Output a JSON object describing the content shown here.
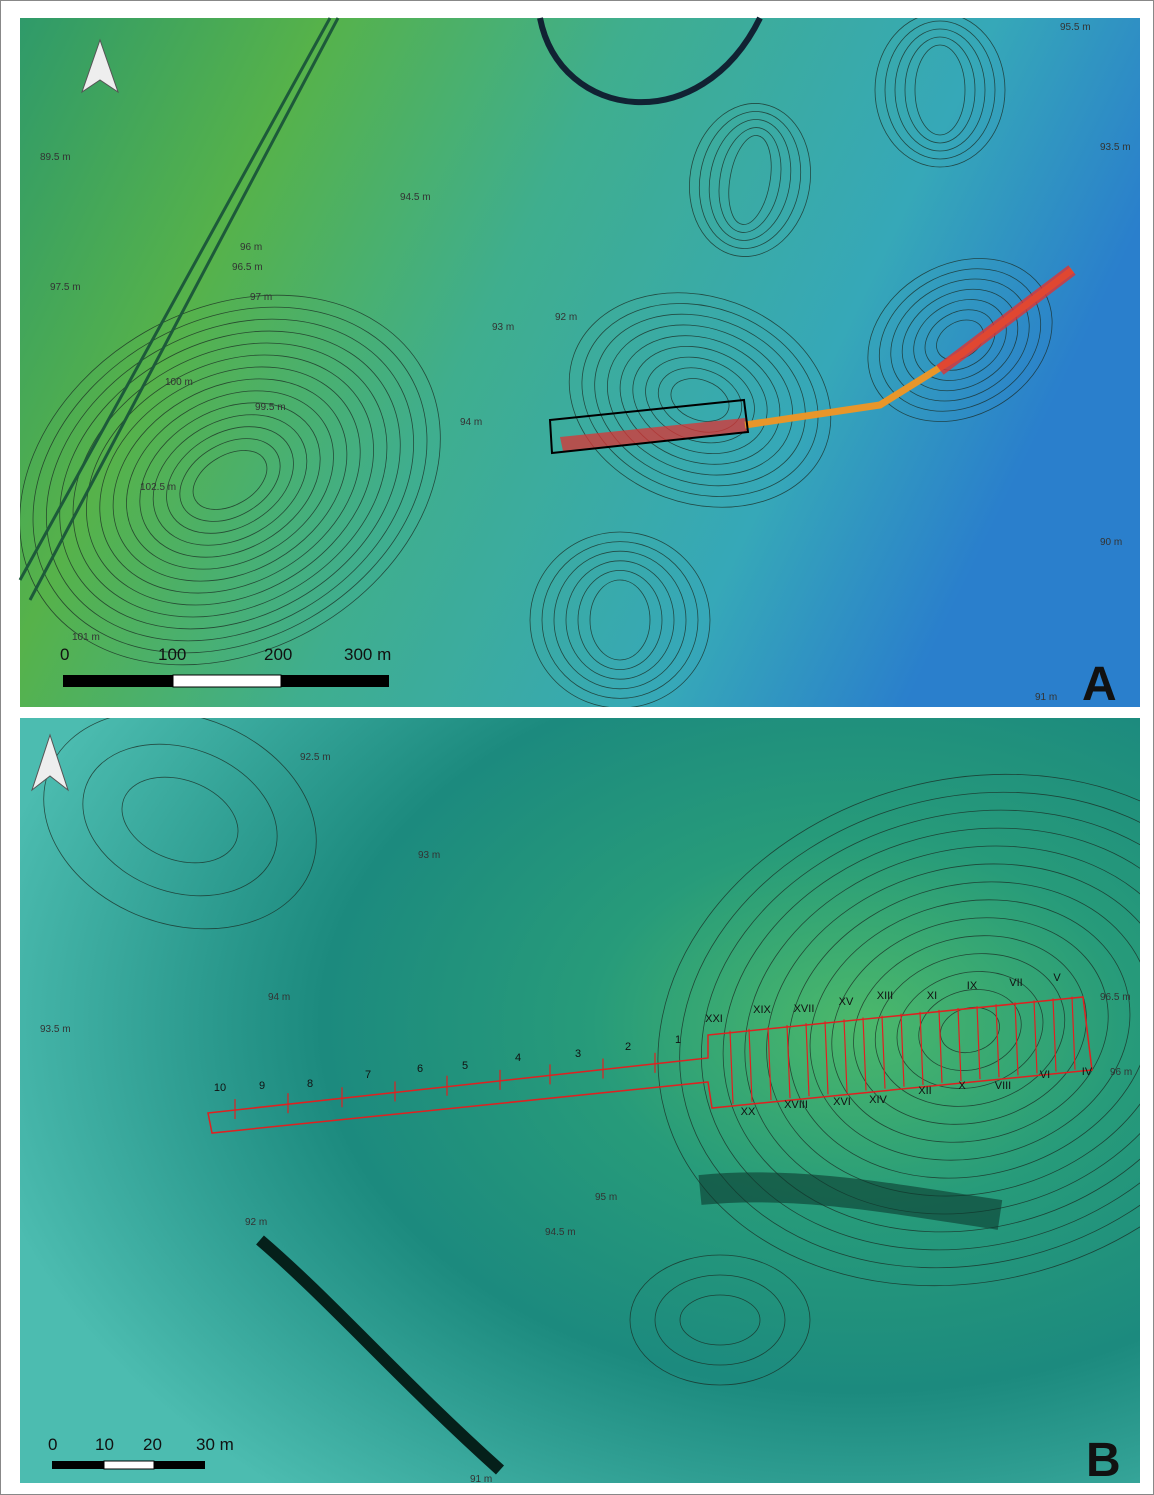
{
  "panels": [
    {
      "label": "A",
      "scale_labels": [
        "0",
        "100",
        "200",
        "300 m"
      ],
      "contour_labels": [
        "89.5 m",
        "90 m",
        "91 m",
        "93.5 m",
        "95.5 m",
        "96 m",
        "96.5 m",
        "97 m",
        "97.5 m",
        "100 m",
        "101 m",
        "102.5 m",
        "92 m",
        "93 m",
        "94 m",
        "94.5 m",
        "99.5 m"
      ]
    },
    {
      "label": "B",
      "scale_labels": [
        "0",
        "10",
        "20",
        "30 m"
      ],
      "trench_labels": [
        "10",
        "9",
        "8",
        "7",
        "6",
        "5",
        "4",
        "3",
        "2",
        "1",
        "XXI",
        "XIX",
        "XVII",
        "XV",
        "XIII",
        "XI",
        "IX",
        "VII",
        "V",
        "XX",
        "XVIII",
        "XVI",
        "XIV",
        "XII",
        "X",
        "VIII",
        "VI",
        "IV"
      ],
      "contour_labels": [
        "92 m",
        "92.5 m",
        "93 m",
        "93.5 m",
        "94 m",
        "94.5 m",
        "95 m",
        "96 m",
        "96.5 m",
        "91 m"
      ]
    }
  ]
}
